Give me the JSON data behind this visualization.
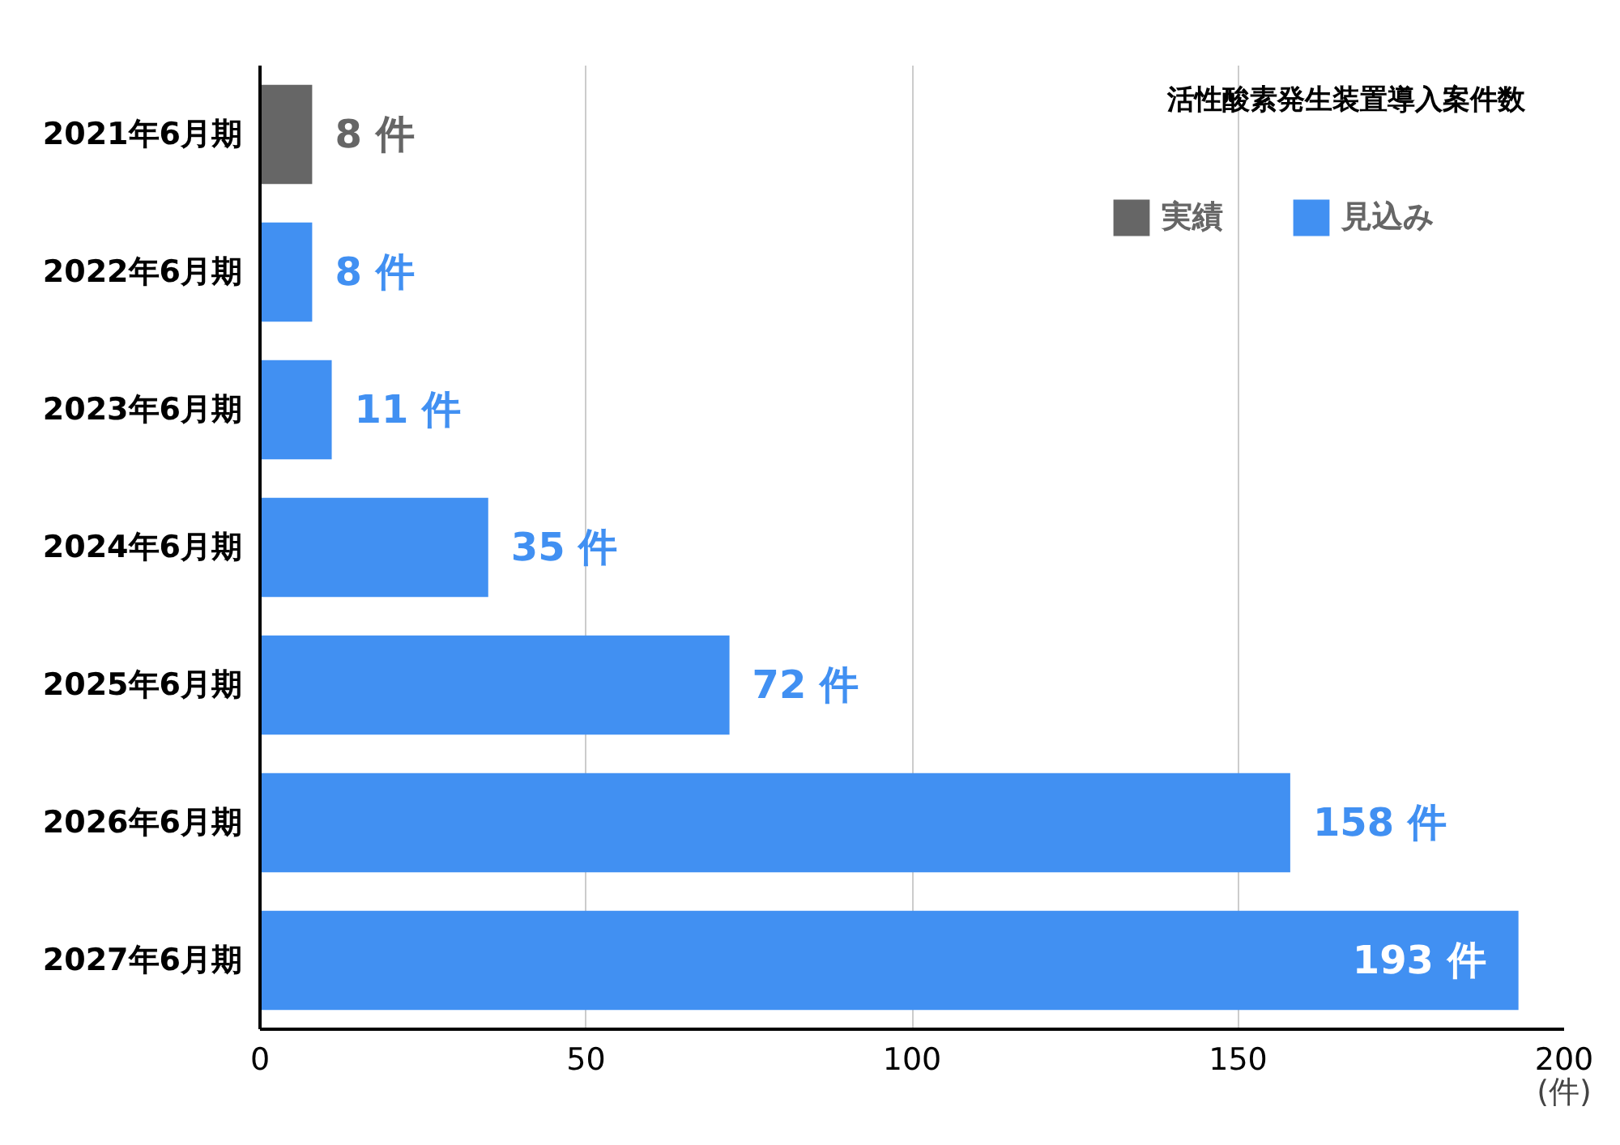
{
  "chart_data": {
    "type": "bar",
    "orientation": "horizontal",
    "title": "活性酸素発生装置導入案件数",
    "xlabel": "(件)",
    "categories": [
      "2021年6月期",
      "2022年6月期",
      "2023年6月期",
      "2024年6月期",
      "2025年6月期",
      "2026年6月期",
      "2027年6月期"
    ],
    "series": [
      {
        "name": "実績",
        "color": "#666666",
        "values": [
          8,
          null,
          null,
          null,
          null,
          null,
          null
        ],
        "value_labels": [
          "8 件",
          null,
          null,
          null,
          null,
          null,
          null
        ]
      },
      {
        "name": "見込み",
        "color": "#4190f2",
        "values": [
          null,
          8,
          11,
          35,
          72,
          158,
          193
        ],
        "value_labels": [
          null,
          "8 件",
          "11 件",
          "35 件",
          "72 件",
          "158 件",
          "193 件"
        ]
      }
    ],
    "xlim": [
      0,
      200
    ],
    "xticks": [
      0,
      50,
      100,
      150,
      200
    ],
    "grid": "x",
    "legend": "top right"
  }
}
